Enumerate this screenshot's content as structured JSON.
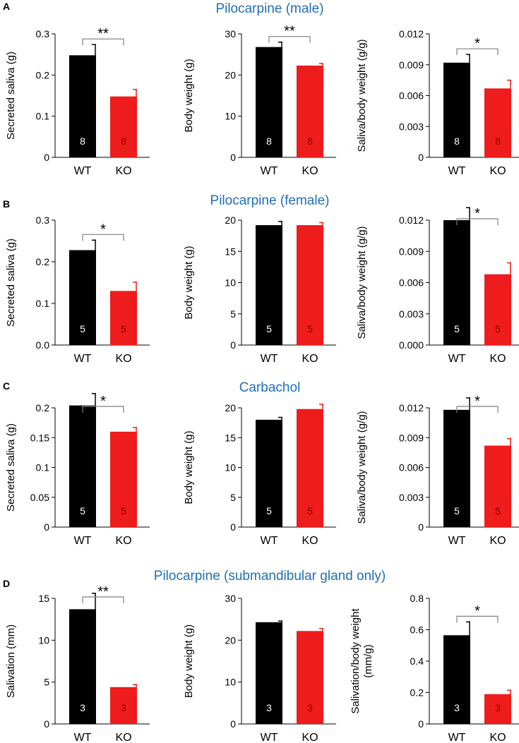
{
  "figure": {
    "rows": [
      {
        "letter": "A",
        "title": "Pilocarpine (male)",
        "charts": [
          {
            "type": "bar",
            "ylabel": [
              "Secreted saliva (g)"
            ],
            "categories": [
              "WT",
              "KO"
            ],
            "values": [
              0.248,
              0.148
            ],
            "errors": [
              0.026,
              0.017
            ],
            "n": [
              "8",
              "8"
            ],
            "ylim": [
              0,
              0.3
            ],
            "ticks": [
              0,
              0.1,
              0.2,
              0.3
            ],
            "tick_labels": [
              "0",
              "0.1",
              "0.2",
              "0.3"
            ],
            "sig": "**"
          },
          {
            "type": "bar",
            "ylabel": [
              "Body weight (g)"
            ],
            "categories": [
              "WT",
              "KO"
            ],
            "values": [
              26.8,
              22.3
            ],
            "errors": [
              1.2,
              0.5
            ],
            "n": [
              "8",
              "8"
            ],
            "ylim": [
              0,
              30
            ],
            "ticks": [
              0,
              10,
              20,
              30
            ],
            "tick_labels": [
              "0",
              "10",
              "20",
              "30"
            ],
            "sig": "**"
          },
          {
            "type": "bar",
            "ylabel": [
              "Saliva/body weight (g/g)"
            ],
            "categories": [
              "WT",
              "KO"
            ],
            "values": [
              0.0092,
              0.0067
            ],
            "errors": [
              0.0008,
              0.0008
            ],
            "n": [
              "8",
              "8"
            ],
            "ylim": [
              0,
              0.012
            ],
            "ticks": [
              0,
              0.003,
              0.006,
              0.009,
              0.012
            ],
            "tick_labels": [
              "0",
              "0.003",
              "0.006",
              "0.009",
              "0.012"
            ],
            "sig": "*"
          }
        ]
      },
      {
        "letter": "B",
        "title": "Pilocarpine (female)",
        "charts": [
          {
            "type": "bar",
            "ylabel": [
              "Secreted saliva (g)"
            ],
            "categories": [
              "WT",
              "KO"
            ],
            "values": [
              0.228,
              0.13
            ],
            "errors": [
              0.024,
              0.021
            ],
            "n": [
              "5",
              "5"
            ],
            "ylim": [
              0,
              0.3
            ],
            "ticks": [
              0,
              0.1,
              0.2,
              0.3
            ],
            "tick_labels": [
              "0.0",
              "0.1",
              "0.2",
              "0.3"
            ],
            "sig": "*"
          },
          {
            "type": "bar",
            "ylabel": [
              "Body weight (g)"
            ],
            "categories": [
              "WT",
              "KO"
            ],
            "values": [
              19.2,
              19.2
            ],
            "errors": [
              0.6,
              0.4
            ],
            "n": [
              "5",
              "5"
            ],
            "ylim": [
              0,
              20
            ],
            "ticks": [
              0,
              5,
              10,
              15,
              20
            ],
            "tick_labels": [
              "0",
              "5",
              "10",
              "15",
              "20"
            ],
            "sig": ""
          },
          {
            "type": "bar",
            "ylabel": [
              "Saliva/body weight (g/g)"
            ],
            "categories": [
              "WT",
              "KO"
            ],
            "values": [
              0.012,
              0.0068
            ],
            "errors": [
              0.0012,
              0.0011
            ],
            "n": [
              "5",
              "5"
            ],
            "ylim": [
              0,
              0.012
            ],
            "ticks": [
              0,
              0.003,
              0.006,
              0.009,
              0.012
            ],
            "tick_labels": [
              "0.000",
              "0.003",
              "0.006",
              "0.009",
              "0.012"
            ],
            "sig": "*"
          }
        ]
      },
      {
        "letter": "C",
        "title": "Carbachol",
        "charts": [
          {
            "type": "bar",
            "ylabel": [
              "Secreted saliva (g)"
            ],
            "categories": [
              "WT",
              "KO"
            ],
            "values": [
              0.21,
              0.16
            ],
            "errors": [
              0.02,
              0.007
            ],
            "n": [
              "5",
              "5"
            ],
            "ylim": [
              0,
              0.2
            ],
            "ticks": [
              0,
              0.05,
              0.1,
              0.15,
              0.2
            ],
            "tick_labels": [
              "0",
              "0.05",
              "0.1",
              "0.15",
              "0.2"
            ],
            "sig": "*"
          },
          {
            "type": "bar",
            "ylabel": [
              "Body weight (g)"
            ],
            "categories": [
              "WT",
              "KO"
            ],
            "values": [
              18.0,
              19.8
            ],
            "errors": [
              0.4,
              0.8
            ],
            "n": [
              "5",
              "5"
            ],
            "ylim": [
              0,
              20
            ],
            "ticks": [
              0,
              5,
              10,
              15,
              20
            ],
            "tick_labels": [
              "0",
              "5",
              "10",
              "15",
              "20"
            ],
            "sig": ""
          },
          {
            "type": "bar",
            "ylabel": [
              "Saliva/body weight (g/g)"
            ],
            "categories": [
              "WT",
              "KO"
            ],
            "values": [
              0.0118,
              0.0082
            ],
            "errors": [
              0.0012,
              0.0007
            ],
            "n": [
              "5",
              "5"
            ],
            "ylim": [
              0,
              0.012
            ],
            "ticks": [
              0,
              0.003,
              0.006,
              0.009,
              0.012
            ],
            "tick_labels": [
              "0",
              "0.003",
              "0.006",
              "0.009",
              "0.012"
            ],
            "sig": "*"
          }
        ]
      },
      {
        "letter": "D",
        "title": "Pilocarpine (submandibular gland only)",
        "charts": [
          {
            "type": "bar",
            "ylabel": [
              "Salivation (mm)"
            ],
            "categories": [
              "WT",
              "KO"
            ],
            "values": [
              13.7,
              4.4
            ],
            "errors": [
              1.9,
              0.3
            ],
            "n": [
              "3",
              "3"
            ],
            "ylim": [
              0,
              15
            ],
            "ticks": [
              0,
              5,
              10,
              15
            ],
            "tick_labels": [
              "0",
              "5",
              "10",
              "15"
            ],
            "sig": "**"
          },
          {
            "type": "bar",
            "ylabel": [
              "Body weight (g)"
            ],
            "categories": [
              "WT",
              "KO"
            ],
            "values": [
              24.3,
              22.2
            ],
            "errors": [
              0.3,
              0.6
            ],
            "n": [
              "3",
              "3"
            ],
            "ylim": [
              0,
              30
            ],
            "ticks": [
              0,
              10,
              20,
              30
            ],
            "tick_labels": [
              "0",
              "10",
              "20",
              "30"
            ],
            "sig": ""
          },
          {
            "type": "bar",
            "ylabel": [
              "Salivation/body weight",
              "(mm/g)"
            ],
            "categories": [
              "WT",
              "KO"
            ],
            "values": [
              0.565,
              0.19
            ],
            "errors": [
              0.085,
              0.025
            ],
            "n": [
              "3",
              "3"
            ],
            "ylim": [
              0,
              0.8
            ],
            "ticks": [
              0,
              0.2,
              0.4,
              0.6,
              0.8
            ],
            "tick_labels": [
              "0",
              "0.2",
              "0.4",
              "0.6",
              "0.8"
            ],
            "sig": "*"
          }
        ]
      }
    ]
  },
  "colors": {
    "wt": "#000000",
    "ko": "#ee1c1c",
    "axis": "#000000",
    "bracket": "#7f7f7f",
    "title": "#1f6fb5"
  }
}
